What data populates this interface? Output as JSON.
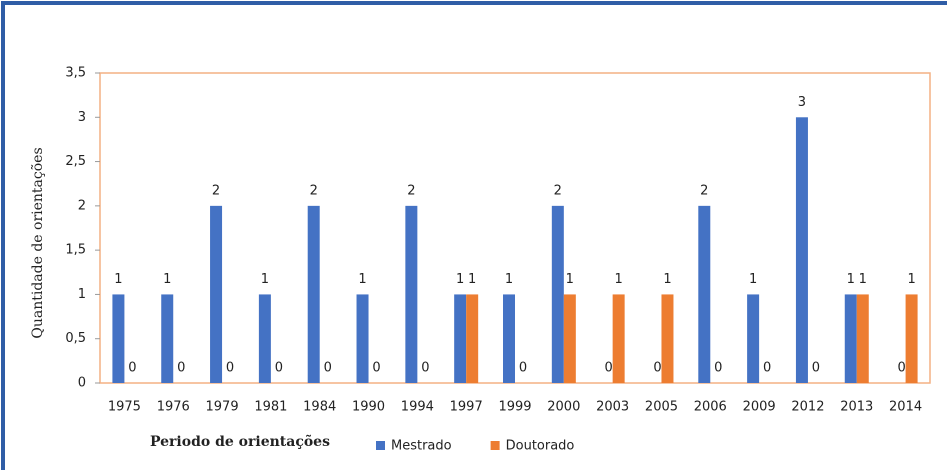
{
  "chart_data": {
    "type": "bar",
    "y_label": "Quantidade de orientações",
    "x_label": "Periodo de orientações",
    "categories": [
      "1975",
      "1976",
      "1979",
      "1981",
      "1984",
      "1990",
      "1994",
      "1997",
      "1999",
      "2000",
      "2003",
      "2005",
      "2006",
      "2009",
      "2012",
      "2013",
      "2014"
    ],
    "series": [
      {
        "name": "Mestrado",
        "color": "#4472c4",
        "values": [
          1,
          1,
          2,
          1,
          2,
          1,
          2,
          1,
          1,
          2,
          0,
          0,
          2,
          1,
          3,
          1,
          0
        ]
      },
      {
        "name": "Doutorado",
        "color": "#ed7d31",
        "values": [
          0,
          0,
          0,
          0,
          0,
          0,
          0,
          1,
          0,
          1,
          1,
          1,
          0,
          0,
          0,
          1,
          1
        ]
      }
    ],
    "ylim": [
      0,
      3.5
    ],
    "yticks": [
      0,
      {
        "value": 0.5,
        "label": "0,5"
      },
      1,
      {
        "value": 1.5,
        "label": "1,5"
      },
      2,
      {
        "value": 2.5,
        "label": "2,5"
      },
      3,
      {
        "value": 3.5,
        "label": "3,5"
      }
    ],
    "grid": false
  }
}
